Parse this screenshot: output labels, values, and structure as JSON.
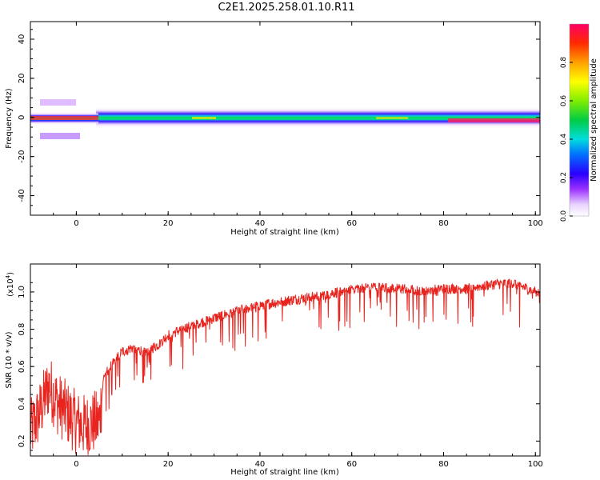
{
  "title": "C2E1.2025.258.01.10.R11",
  "chart_data": [
    {
      "type": "heatmap",
      "title": "C2E1.2025.258.01.10.R11",
      "xlabel": "Height of straight line (km)",
      "ylabel": "Frequency (Hz)",
      "xlim": [
        -10,
        101
      ],
      "ylim": [
        -50,
        49
      ],
      "x_ticks": [
        0,
        20,
        40,
        60,
        80,
        100
      ],
      "y_ticks": [
        40,
        20,
        0,
        -20,
        -40
      ],
      "description_bands": [
        {
          "x": [
            -10,
            5
          ],
          "freq": [
            -2,
            2
          ],
          "amplitude": 0.95
        },
        {
          "x": [
            -4,
            0
          ],
          "freq": [
            -10,
            -8
          ],
          "amplitude": 0.25
        },
        {
          "x": [
            -4,
            0
          ],
          "freq": [
            8,
            10
          ],
          "amplitude": 0.2
        },
        {
          "x": [
            5,
            100
          ],
          "freq": [
            -2,
            2
          ],
          "amplitude": 0.5
        },
        {
          "x": [
            80,
            100
          ],
          "freq": [
            -2,
            0
          ],
          "amplitude": 0.95
        }
      ],
      "colorbar": {
        "label": "Normalized spectral amplitude",
        "ticks": [
          "0.0",
          "0.2",
          "0.4",
          "0.6",
          "0.8"
        ],
        "range": [
          0,
          1
        ]
      }
    },
    {
      "type": "line",
      "xlabel": "Height of straight line (km)",
      "ylabel": "SNR (10 * v/v)",
      "y_multiplier": "(x10",
      "y_multiplier_exp": "4",
      "y_multiplier_close": ")",
      "xlim": [
        -10,
        101
      ],
      "ylim": [
        0.12,
        1.15
      ],
      "x_ticks": [
        0,
        20,
        40,
        60,
        80,
        100
      ],
      "y_ticks": [
        "0.2",
        "0.4",
        "0.6",
        "0.8",
        "1.0"
      ],
      "series": [
        {
          "name": "SNR",
          "color": "#e8241f",
          "trend_x": [
            -10,
            -8,
            -6,
            -4,
            -2,
            0,
            2,
            4,
            5,
            6,
            8,
            10,
            12,
            15,
            18,
            20,
            25,
            30,
            35,
            40,
            45,
            50,
            55,
            60,
            65,
            70,
            75,
            80,
            85,
            90,
            95,
            100
          ],
          "trend_y": [
            0.25,
            0.35,
            0.5,
            0.4,
            0.35,
            0.3,
            0.28,
            0.3,
            0.3,
            0.55,
            0.62,
            0.68,
            0.7,
            0.68,
            0.72,
            0.77,
            0.82,
            0.86,
            0.9,
            0.93,
            0.95,
            0.97,
            0.99,
            1.02,
            1.03,
            1.02,
            1.01,
            1.02,
            1.02,
            1.04,
            1.05,
            1.0
          ]
        }
      ]
    }
  ]
}
